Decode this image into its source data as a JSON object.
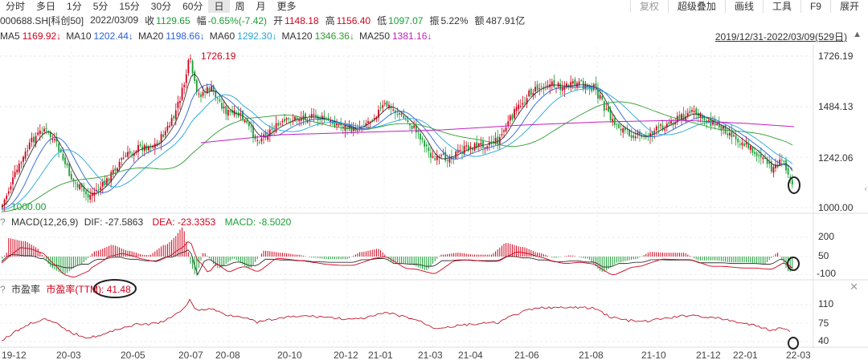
{
  "tabs": [
    "分时",
    "多日",
    "1分",
    "5分",
    "15分",
    "30分",
    "60分",
    "日",
    "周",
    "月",
    "更多"
  ],
  "active_tab": "日",
  "right_tools": {
    "restore": "复权",
    "overlay": "超级叠加",
    "draw": "画线",
    "tools": "工具",
    "f9": "F9",
    "expand": "展开"
  },
  "quote": {
    "code": "000688.SH[科创50]",
    "date": "2022/03/09",
    "close_label": "收",
    "close": "1129.65",
    "change_label": "幅",
    "change": "-0.65%(-7.42)",
    "open_label": "开",
    "open": "1148.18",
    "high_label": "高",
    "high": "1156.40",
    "low_label": "低",
    "low": "1097.07",
    "amp_label": "振",
    "amp": "5.22%",
    "amount_label": "额",
    "amount": "487.91亿"
  },
  "ma": [
    {
      "label": "MA5",
      "value": "1169.92↓",
      "color": "#333333",
      "valcolor": "#d0021b"
    },
    {
      "label": "MA10",
      "value": "1202.44↓",
      "color": "#333333",
      "valcolor": "#2a62d6"
    },
    {
      "label": "MA20",
      "value": "1198.66↓",
      "color": "#333333",
      "valcolor": "#2a62d6"
    },
    {
      "label": "MA60",
      "value": "1292.30↓",
      "color": "#333333",
      "valcolor": "#21a7d6"
    },
    {
      "label": "MA120",
      "value": "1346.36↓",
      "color": "#333333",
      "valcolor": "#2f9a2f"
    },
    {
      "label": "MA250",
      "value": "1381.16↓",
      "color": "#333333",
      "valcolor": "#c21ec2"
    }
  ],
  "date_range": "2019/12/31-2022/03/09(529日)",
  "price_axis": [
    "1726.19",
    "1484.13",
    "1242.06",
    "1000.00"
  ],
  "max_label": "1726.19",
  "min_label": "1000.00",
  "macd": {
    "title": "MACD(12,26,9)",
    "dif_label": "DIF:",
    "dif": "-27.5863",
    "dea_label": "DEA:",
    "dea": "-23.3353",
    "macd_label": "MACD:",
    "macd": "-8.5020",
    "axis": [
      "200",
      "50",
      "-100"
    ]
  },
  "pe": {
    "title": "市盈率",
    "series_label": "市盈率(TTM):",
    "value": "41.48",
    "axis": [
      "110",
      "75",
      "40"
    ]
  },
  "x_axis": [
    "19-12",
    "20-03",
    "20-05",
    "20-07",
    "20-08",
    "20-10",
    "20-12",
    "21-01",
    "21-03",
    "21-04",
    "21-06",
    "21-08",
    "21-10",
    "21-12",
    "22-01",
    "22-03"
  ],
  "colors": {
    "up": "#d0021b",
    "down": "#1a9e35",
    "ma5": "#333333",
    "ma10": "#2a62d6",
    "ma20": "#21a7d6",
    "ma60": "#2f9a2f",
    "ma250": "#c21ec2",
    "pe": "#c0182d"
  }
}
